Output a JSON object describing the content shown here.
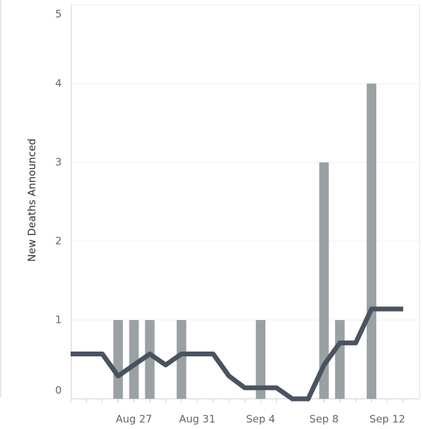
{
  "chart_data": {
    "type": "combo",
    "y_label": "New Deaths Announced",
    "categories": [
      null,
      null,
      null,
      null,
      "Aug 27",
      null,
      null,
      null,
      "Aug 31",
      null,
      null,
      null,
      "Sep 4",
      null,
      null,
      null,
      "Sep 8",
      null,
      null,
      null,
      "Sep 12",
      null
    ],
    "series": [
      {
        "type": "bar",
        "color": "#9aa1a3",
        "values": [
          0,
          0,
          0,
          1,
          1,
          1,
          0,
          1,
          0,
          0,
          0,
          0,
          1,
          0,
          0,
          0,
          3,
          1,
          0,
          4,
          0,
          0
        ]
      },
      {
        "type": "line",
        "color": "#4a5360",
        "values": [
          0.57,
          0.57,
          0.57,
          0.29,
          0.43,
          0.57,
          0.43,
          0.57,
          0.57,
          0.57,
          0.29,
          0.14,
          0.14,
          0.14,
          0,
          0,
          0.43,
          0.71,
          0.71,
          1.14,
          1.14,
          1.14
        ]
      }
    ],
    "ylim": [
      0,
      5
    ],
    "yticks": [
      0,
      1,
      2,
      3,
      4,
      5
    ],
    "grid": true
  }
}
